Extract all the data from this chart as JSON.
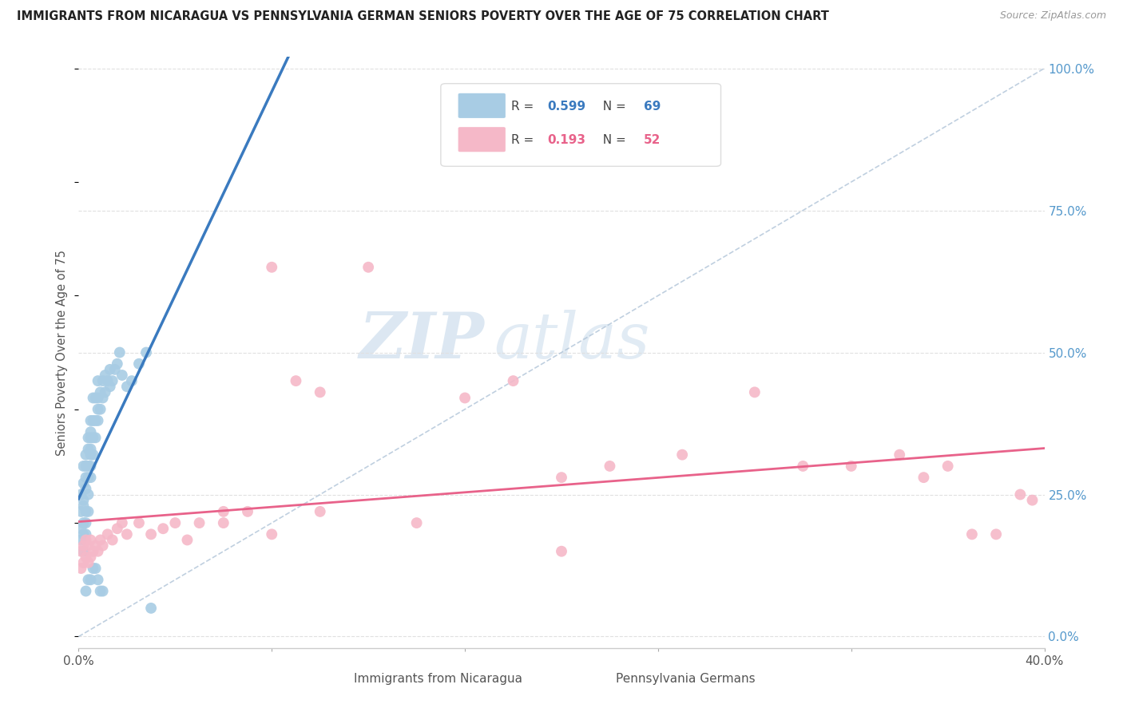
{
  "title": "IMMIGRANTS FROM NICARAGUA VS PENNSYLVANIA GERMAN SENIORS POVERTY OVER THE AGE OF 75 CORRELATION CHART",
  "source": "Source: ZipAtlas.com",
  "ylabel": "Seniors Poverty Over the Age of 75",
  "legend_labels": [
    "Immigrants from Nicaragua",
    "Pennsylvania Germans"
  ],
  "legend_r": [
    0.599,
    0.193
  ],
  "legend_n": [
    69,
    52
  ],
  "blue_color": "#a8cce4",
  "pink_color": "#f5b8c8",
  "blue_line_color": "#3a7abf",
  "pink_line_color": "#e8628a",
  "dashed_line_color": "#b0c4d8",
  "watermark_zip": "ZIP",
  "watermark_atlas": "atlas",
  "blue_scatter_x": [
    0.001,
    0.001,
    0.001,
    0.001,
    0.002,
    0.002,
    0.002,
    0.002,
    0.002,
    0.002,
    0.002,
    0.003,
    0.003,
    0.003,
    0.003,
    0.003,
    0.003,
    0.003,
    0.004,
    0.004,
    0.004,
    0.004,
    0.004,
    0.004,
    0.005,
    0.005,
    0.005,
    0.005,
    0.005,
    0.005,
    0.005,
    0.006,
    0.006,
    0.006,
    0.006,
    0.007,
    0.007,
    0.007,
    0.008,
    0.008,
    0.008,
    0.008,
    0.009,
    0.009,
    0.01,
    0.01,
    0.011,
    0.011,
    0.012,
    0.013,
    0.013,
    0.014,
    0.015,
    0.016,
    0.017,
    0.018,
    0.02,
    0.022,
    0.025,
    0.028,
    0.01,
    0.003,
    0.004,
    0.005,
    0.006,
    0.007,
    0.008,
    0.009,
    0.03
  ],
  "blue_scatter_y": [
    0.17,
    0.19,
    0.22,
    0.25,
    0.2,
    0.23,
    0.27,
    0.3,
    0.18,
    0.24,
    0.15,
    0.22,
    0.26,
    0.3,
    0.28,
    0.32,
    0.2,
    0.18,
    0.25,
    0.28,
    0.3,
    0.33,
    0.35,
    0.22,
    0.3,
    0.33,
    0.35,
    0.28,
    0.32,
    0.36,
    0.38,
    0.32,
    0.35,
    0.38,
    0.42,
    0.35,
    0.38,
    0.42,
    0.38,
    0.4,
    0.42,
    0.45,
    0.4,
    0.43,
    0.42,
    0.45,
    0.43,
    0.46,
    0.45,
    0.44,
    0.47,
    0.45,
    0.47,
    0.48,
    0.5,
    0.46,
    0.44,
    0.45,
    0.48,
    0.5,
    0.08,
    0.08,
    0.1,
    0.1,
    0.12,
    0.12,
    0.1,
    0.08,
    0.05
  ],
  "pink_scatter_x": [
    0.001,
    0.001,
    0.002,
    0.002,
    0.003,
    0.003,
    0.004,
    0.004,
    0.005,
    0.005,
    0.006,
    0.007,
    0.008,
    0.009,
    0.01,
    0.012,
    0.014,
    0.016,
    0.018,
    0.02,
    0.025,
    0.03,
    0.035,
    0.04,
    0.045,
    0.05,
    0.06,
    0.07,
    0.08,
    0.09,
    0.1,
    0.12,
    0.14,
    0.16,
    0.18,
    0.2,
    0.22,
    0.25,
    0.28,
    0.3,
    0.32,
    0.34,
    0.35,
    0.36,
    0.37,
    0.38,
    0.39,
    0.395,
    0.06,
    0.08,
    0.1,
    0.2
  ],
  "pink_scatter_y": [
    0.12,
    0.15,
    0.13,
    0.16,
    0.14,
    0.17,
    0.13,
    0.16,
    0.14,
    0.17,
    0.15,
    0.16,
    0.15,
    0.17,
    0.16,
    0.18,
    0.17,
    0.19,
    0.2,
    0.18,
    0.2,
    0.18,
    0.19,
    0.2,
    0.17,
    0.2,
    0.2,
    0.22,
    0.65,
    0.45,
    0.22,
    0.65,
    0.2,
    0.42,
    0.45,
    0.28,
    0.3,
    0.32,
    0.43,
    0.3,
    0.3,
    0.32,
    0.28,
    0.3,
    0.18,
    0.18,
    0.25,
    0.24,
    0.22,
    0.18,
    0.43,
    0.15
  ],
  "xlim": [
    0.0,
    0.4
  ],
  "ylim": [
    -0.02,
    1.02
  ],
  "yticks": [
    0.0,
    0.25,
    0.5,
    0.75,
    1.0
  ],
  "yticklabels": [
    "0.0%",
    "25.0%",
    "50.0%",
    "75.0%",
    "100.0%"
  ],
  "grid_color": "#e0e0e0",
  "background_color": "#ffffff"
}
